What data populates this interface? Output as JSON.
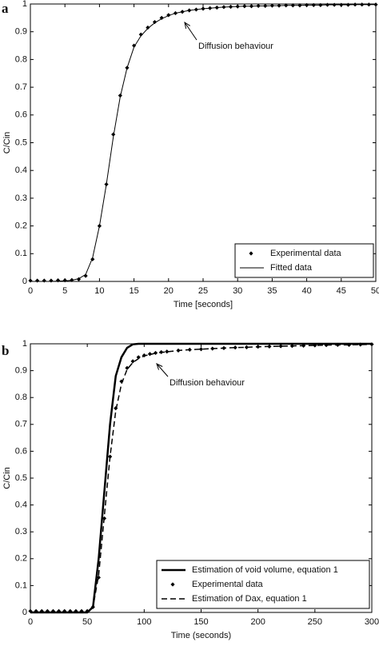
{
  "chart_data": [
    {
      "type": "line",
      "panel_label": "a",
      "ylabel": "C/Cin",
      "xlabel": "Time [seconds]",
      "annotation": "Diffusion behaviour",
      "xlim": [
        0,
        50
      ],
      "ylim": [
        0,
        1
      ],
      "xticks": [
        0,
        5,
        10,
        15,
        20,
        25,
        30,
        35,
        40,
        45,
        50
      ],
      "yticks": [
        0,
        0.1,
        0.2,
        0.3,
        0.4,
        0.5,
        0.6,
        0.7,
        0.8,
        0.9,
        1
      ],
      "legend": "lower right",
      "x": [
        0,
        1,
        2,
        3,
        4,
        5,
        6,
        7,
        8,
        9,
        10,
        11,
        12,
        13,
        14,
        15,
        16,
        17,
        18,
        19,
        20,
        21,
        22,
        23,
        24,
        25,
        26,
        27,
        28,
        29,
        30,
        31,
        32,
        33,
        34,
        35,
        36,
        37,
        38,
        39,
        40,
        41,
        42,
        43,
        44,
        45,
        46,
        47,
        48,
        49,
        50
      ],
      "series": [
        {
          "name": "Experimental data",
          "style": "points",
          "color": "#000000",
          "linewidth": 1,
          "values": [
            0.003,
            0.003,
            0.003,
            0.003,
            0.004,
            0.004,
            0.005,
            0.008,
            0.02,
            0.08,
            0.2,
            0.35,
            0.53,
            0.67,
            0.77,
            0.85,
            0.89,
            0.915,
            0.935,
            0.95,
            0.96,
            0.967,
            0.972,
            0.977,
            0.98,
            0.983,
            0.985,
            0.987,
            0.989,
            0.99,
            0.991,
            0.992,
            0.992,
            0.993,
            0.993,
            0.994,
            0.994,
            0.995,
            0.995,
            0.995,
            0.996,
            0.996,
            0.996,
            0.997,
            0.997,
            0.997,
            0.997,
            0.998,
            0.998,
            0.998,
            0.998
          ]
        },
        {
          "name": "Fitted data",
          "style": "solid",
          "color": "#000000",
          "linewidth": 1,
          "values": [
            0,
            0,
            0,
            0,
            0.001,
            0.002,
            0.004,
            0.01,
            0.025,
            0.085,
            0.2,
            0.35,
            0.52,
            0.665,
            0.77,
            0.845,
            0.885,
            0.912,
            0.932,
            0.947,
            0.958,
            0.967,
            0.972,
            0.977,
            0.98,
            0.983,
            0.985,
            0.987,
            0.989,
            0.99,
            0.991,
            0.992,
            0.992,
            0.993,
            0.993,
            0.994,
            0.994,
            0.995,
            0.995,
            0.995,
            0.996,
            0.996,
            0.996,
            0.997,
            0.997,
            0.997,
            0.997,
            0.998,
            0.998,
            0.998,
            0.998
          ]
        }
      ]
    },
    {
      "type": "line",
      "panel_label": "b",
      "ylabel": "C/Cin",
      "xlabel": "Time (seconds)",
      "annotation": "Diffusion behaviour",
      "xlim": [
        0,
        300
      ],
      "ylim": [
        0,
        1
      ],
      "xticks": [
        0,
        50,
        100,
        150,
        200,
        250,
        300
      ],
      "yticks": [
        0,
        0.1,
        0.2,
        0.3,
        0.4,
        0.5,
        0.6,
        0.7,
        0.8,
        0.9,
        1
      ],
      "legend": "lower right",
      "x": [
        0,
        5,
        10,
        15,
        20,
        25,
        30,
        35,
        40,
        45,
        50,
        55,
        60,
        65,
        70,
        75,
        80,
        85,
        90,
        95,
        100,
        105,
        110,
        115,
        120,
        130,
        140,
        150,
        160,
        170,
        180,
        190,
        200,
        210,
        220,
        230,
        240,
        250,
        260,
        270,
        280,
        290,
        300
      ],
      "series": [
        {
          "name": "Estimation of void volume, equation 1",
          "style": "solid",
          "color": "#000000",
          "linewidth": 2.5,
          "values": [
            0,
            0,
            0,
            0,
            0,
            0,
            0,
            0,
            0,
            0,
            0,
            0.02,
            0.2,
            0.45,
            0.7,
            0.88,
            0.95,
            0.985,
            0.998,
            1,
            1,
            1,
            1,
            1,
            1,
            1,
            1,
            1,
            1,
            1,
            1,
            1,
            1,
            1,
            1,
            1,
            1,
            1,
            1,
            1,
            1,
            1,
            1
          ]
        },
        {
          "name": "Experimental data",
          "style": "points",
          "color": "#000000",
          "linewidth": 1,
          "values": [
            0.005,
            0.005,
            0.005,
            0.005,
            0.005,
            0.005,
            0.005,
            0.005,
            0.005,
            0.005,
            0.005,
            0.02,
            0.13,
            0.35,
            0.58,
            0.76,
            0.86,
            0.91,
            0.935,
            0.95,
            0.957,
            0.962,
            0.966,
            0.969,
            0.971,
            0.975,
            0.978,
            0.98,
            0.982,
            0.984,
            0.986,
            0.987,
            0.989,
            0.99,
            0.991,
            0.992,
            0.993,
            0.994,
            0.995,
            0.996,
            0.996,
            0.997,
            0.998
          ]
        },
        {
          "name": "Estimation of Dax, equation 1",
          "style": "dashed",
          "color": "#000000",
          "linewidth": 1.5,
          "values": [
            0,
            0,
            0,
            0,
            0,
            0,
            0,
            0,
            0,
            0,
            0,
            0.02,
            0.14,
            0.36,
            0.58,
            0.75,
            0.85,
            0.905,
            0.93,
            0.945,
            0.955,
            0.96,
            0.965,
            0.968,
            0.97,
            0.975,
            0.978,
            0.98,
            0.982,
            0.984,
            0.986,
            0.987,
            0.989,
            0.99,
            0.991,
            0.992,
            0.993,
            0.994,
            0.995,
            0.996,
            0.996,
            0.997,
            0.998
          ]
        }
      ]
    }
  ]
}
